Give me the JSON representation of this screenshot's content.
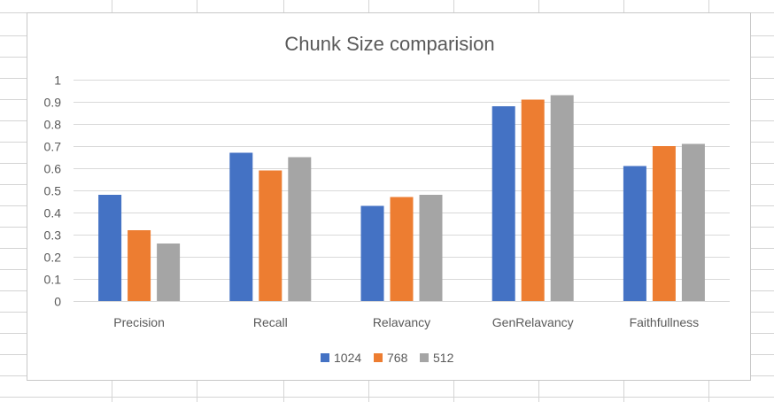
{
  "chart_data": {
    "type": "bar",
    "title": "Chunk Size comparision",
    "xlabel": "",
    "ylabel": "",
    "categories": [
      "Precision",
      "Recall",
      "Relavancy",
      "GenRelavancy",
      "Faithfullness"
    ],
    "series": [
      {
        "name": "1024",
        "color": "#4472C4",
        "values": [
          0.48,
          0.67,
          0.43,
          0.88,
          0.61
        ]
      },
      {
        "name": "768",
        "color": "#ED7D31",
        "values": [
          0.32,
          0.59,
          0.47,
          0.91,
          0.7
        ]
      },
      {
        "name": "512",
        "color": "#A5A5A5",
        "values": [
          0.26,
          0.65,
          0.48,
          0.93,
          0.71
        ]
      }
    ],
    "ylim": [
      0,
      1
    ],
    "yticks": [
      "0",
      "0.1",
      "0.2",
      "0.3",
      "0.4",
      "0.5",
      "0.6",
      "0.7",
      "0.8",
      "0.9",
      "1"
    ],
    "grid": true,
    "legend_position": "bottom"
  },
  "theme": {
    "gridline_color": "#d9d9d9",
    "sheet_grid_color": "#d4d4d4",
    "text_color": "#595959"
  }
}
